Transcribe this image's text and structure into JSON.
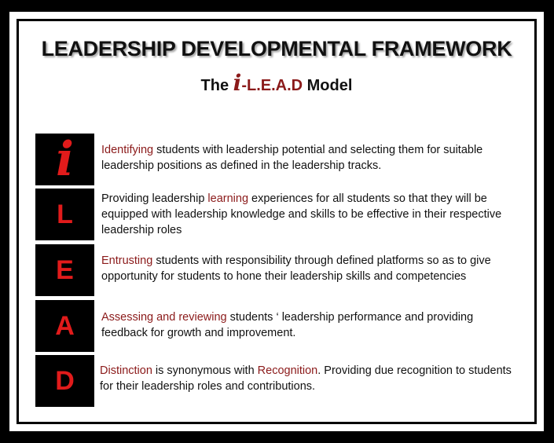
{
  "title": "LEADERSHIP DEVELOPMENTAL FRAMEWORK",
  "subtitle": {
    "prefix": "The ",
    "i": "i",
    "lead": "-L.E.A.D",
    "suffix": " Model"
  },
  "rows": [
    {
      "letter": "i",
      "highlight": "Identifying",
      "text": " students with leadership potential and selecting them for suitable leadership positions as defined in the  leadership tracks."
    },
    {
      "letter": "L",
      "before": "Providing  leadership ",
      "highlight": "learning",
      "text": " experiences for all students so that they will be equipped with leadership knowledge and skills to be effective in their respective leadership roles"
    },
    {
      "letter": "E",
      "highlight": "Entrusting",
      "text": " students  with responsibility through defined platforms so as to give opportunity for students to hone their leadership skills and competencies"
    },
    {
      "letter": "A",
      "highlight": "Assessing  and reviewing",
      "text": " students ‘ leadership performance and  providing feedback for growth and improvement."
    },
    {
      "letter": "D",
      "highlight": "Distinction",
      "middle": " is synonymous with ",
      "highlight2": "Recognition",
      "text": ".  Providing due recognition to students for their leadership roles and contributions."
    }
  ],
  "colors": {
    "highlight": "#8b1a1a",
    "letter": "#e11b1b",
    "box": "#000000"
  }
}
